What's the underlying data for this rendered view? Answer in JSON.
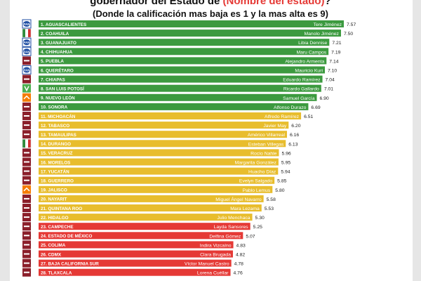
{
  "header": {
    "title_prefix": "gobernador del Estado de ",
    "title_highlight": "(Nombre del estado)",
    "title_suffix": "?",
    "subtitle": "(Donde la calificación mas baja es 1 y la mas alta es 9)"
  },
  "colors": {
    "high": "#3c9a3f",
    "mid": "#e8bd2d",
    "low": "#e53935"
  },
  "chart_data": {
    "type": "bar",
    "orientation": "horizontal",
    "title": "gobernador del Estado de (Nombre del estado)?",
    "subtitle": "(Donde la calificación mas baja es 1 y la mas alta es 9)",
    "xlim": [
      0,
      7.57
    ],
    "grid": false,
    "legend": "none",
    "rows": [
      {
        "state": "1. AGUASCALIENTES",
        "governor": "Tere Jiménez",
        "value": 7.57,
        "tier": "high",
        "party": "PAN"
      },
      {
        "state": "2. COAHUILA",
        "governor": "Manolo Jiménez",
        "value": 7.5,
        "tier": "high",
        "party": "PRI"
      },
      {
        "state": "3. GUANAJUATO",
        "governor": "Libia Dennise",
        "value": 7.21,
        "tier": "high",
        "party": "PAN"
      },
      {
        "state": "4. CHIHUAHUA",
        "governor": "Maru Campos",
        "value": 7.19,
        "tier": "high",
        "party": "PAN"
      },
      {
        "state": "5. PUEBLA",
        "governor": "Alejandro Armenta",
        "value": 7.14,
        "tier": "high",
        "party": "MORENA"
      },
      {
        "state": "6. QUERÉTARO",
        "governor": "Mauricio Kuri",
        "value": 7.1,
        "tier": "high",
        "party": "PAN"
      },
      {
        "state": "7. CHIAPAS",
        "governor": "Eduardo Ramírez",
        "value": 7.04,
        "tier": "high",
        "party": "MORENA"
      },
      {
        "state": "8. SAN LUIS POTOSÍ",
        "governor": "Ricardo Gallardo",
        "value": 7.01,
        "tier": "high",
        "party": "PVEM"
      },
      {
        "state": "9. NUEVO LEÓN",
        "governor": "Samuel García",
        "value": 6.9,
        "tier": "high",
        "party": "MC"
      },
      {
        "state": "10. SONORA",
        "governor": "Alfonso Durazo",
        "value": 6.69,
        "tier": "high",
        "party": "MORENA"
      },
      {
        "state": "11. MICHOACÁN",
        "governor": "Alfredo Ramírez",
        "value": 6.51,
        "tier": "mid",
        "party": "MORENA"
      },
      {
        "state": "12. TABASCO",
        "governor": "Javier May",
        "value": 6.2,
        "tier": "mid",
        "party": "MORENA"
      },
      {
        "state": "13. TAMAULIPAS",
        "governor": "Américo Villarreal",
        "value": 6.16,
        "tier": "mid",
        "party": "MORENA"
      },
      {
        "state": "14. DURANGO",
        "governor": "Esteban Villegas",
        "value": 6.13,
        "tier": "mid",
        "party": "PRI"
      },
      {
        "state": "15. VERACRUZ",
        "governor": "Rocío Nahle",
        "value": 5.96,
        "tier": "mid",
        "party": "MORENA"
      },
      {
        "state": "16. MORELOS",
        "governor": "Margarita González",
        "value": 5.95,
        "tier": "mid",
        "party": "MORENA"
      },
      {
        "state": "17. YUCATÁN",
        "governor": "Huacho Díaz",
        "value": 5.94,
        "tier": "mid",
        "party": "MORENA"
      },
      {
        "state": "18. GUERRERO",
        "governor": "Evelyn Salgado",
        "value": 5.85,
        "tier": "mid",
        "party": "MORENA"
      },
      {
        "state": "19. JALISCO",
        "governor": "Pablo Lemus",
        "value": 5.8,
        "tier": "mid",
        "party": "MC"
      },
      {
        "state": "20. NAYARIT",
        "governor": "Miguel Ángel Navarro",
        "value": 5.58,
        "tier": "mid",
        "party": "MORENA"
      },
      {
        "state": "21. QUINTANA ROO",
        "governor": "Mara Lezama",
        "value": 5.53,
        "tier": "mid",
        "party": "MORENA"
      },
      {
        "state": "22. HIDALGO",
        "governor": "Julio Menchaca",
        "value": 5.3,
        "tier": "mid",
        "party": "MORENA"
      },
      {
        "state": "23. CAMPECHE",
        "governor": "Layda Sansores",
        "value": 5.25,
        "tier": "low",
        "party": "MORENA"
      },
      {
        "state": "24. ESTADO DE MÉXICO",
        "governor": "Delfina Gómez",
        "value": 5.07,
        "tier": "low",
        "party": "MORENA"
      },
      {
        "state": "25. COLIMA",
        "governor": "Indira Vizcaíno",
        "value": 4.83,
        "tier": "low",
        "party": "MORENA"
      },
      {
        "state": "26. CDMX",
        "governor": "Clara Brugada",
        "value": 4.82,
        "tier": "low",
        "party": "MORENA"
      },
      {
        "state": "27. BAJA CALIFORNIA SUR",
        "governor": "Víctor Manuel Castro",
        "value": 4.78,
        "tier": "low",
        "party": "MORENA"
      },
      {
        "state": "28. TLAXCALA",
        "governor": "Lorena Cuéllar",
        "value": 4.76,
        "tier": "low",
        "party": "MORENA"
      }
    ]
  }
}
